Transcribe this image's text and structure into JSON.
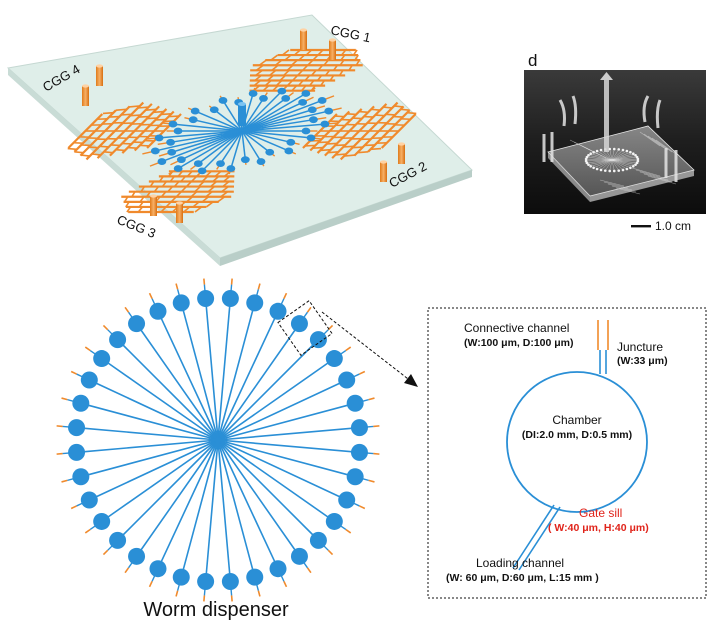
{
  "top_device": {
    "labels": [
      "CGG 1",
      "CGG 2",
      "CGG 3",
      "CGG 4"
    ]
  },
  "photo": {
    "panel_letter": "d",
    "scale_bar": "1.0 cm"
  },
  "worm_dispenser": {
    "title": "Worm dispenser",
    "chamber_count": 36
  },
  "detail": {
    "connective_channel": "Connective channel",
    "connective_dims": "(W:100 μm, D:100 μm)",
    "juncture": "Juncture",
    "juncture_dims": "(W:33 μm)",
    "chamber": "Chamber",
    "chamber_dims": "(DI:2.0 mm, D:0.5 mm)",
    "gate_sill": "Gate sill",
    "gate_sill_dims": "( W:40 μm, H:40 μm)",
    "loading_channel": "Loading channel",
    "loading_dims": "(W: 60 μm, D:60 μm, L:15 mm )"
  },
  "colors": {
    "blue": "#2a8fd6",
    "orange": "#f08a2c",
    "plate": "#dfeee9",
    "gate_red": "#e0241b"
  }
}
